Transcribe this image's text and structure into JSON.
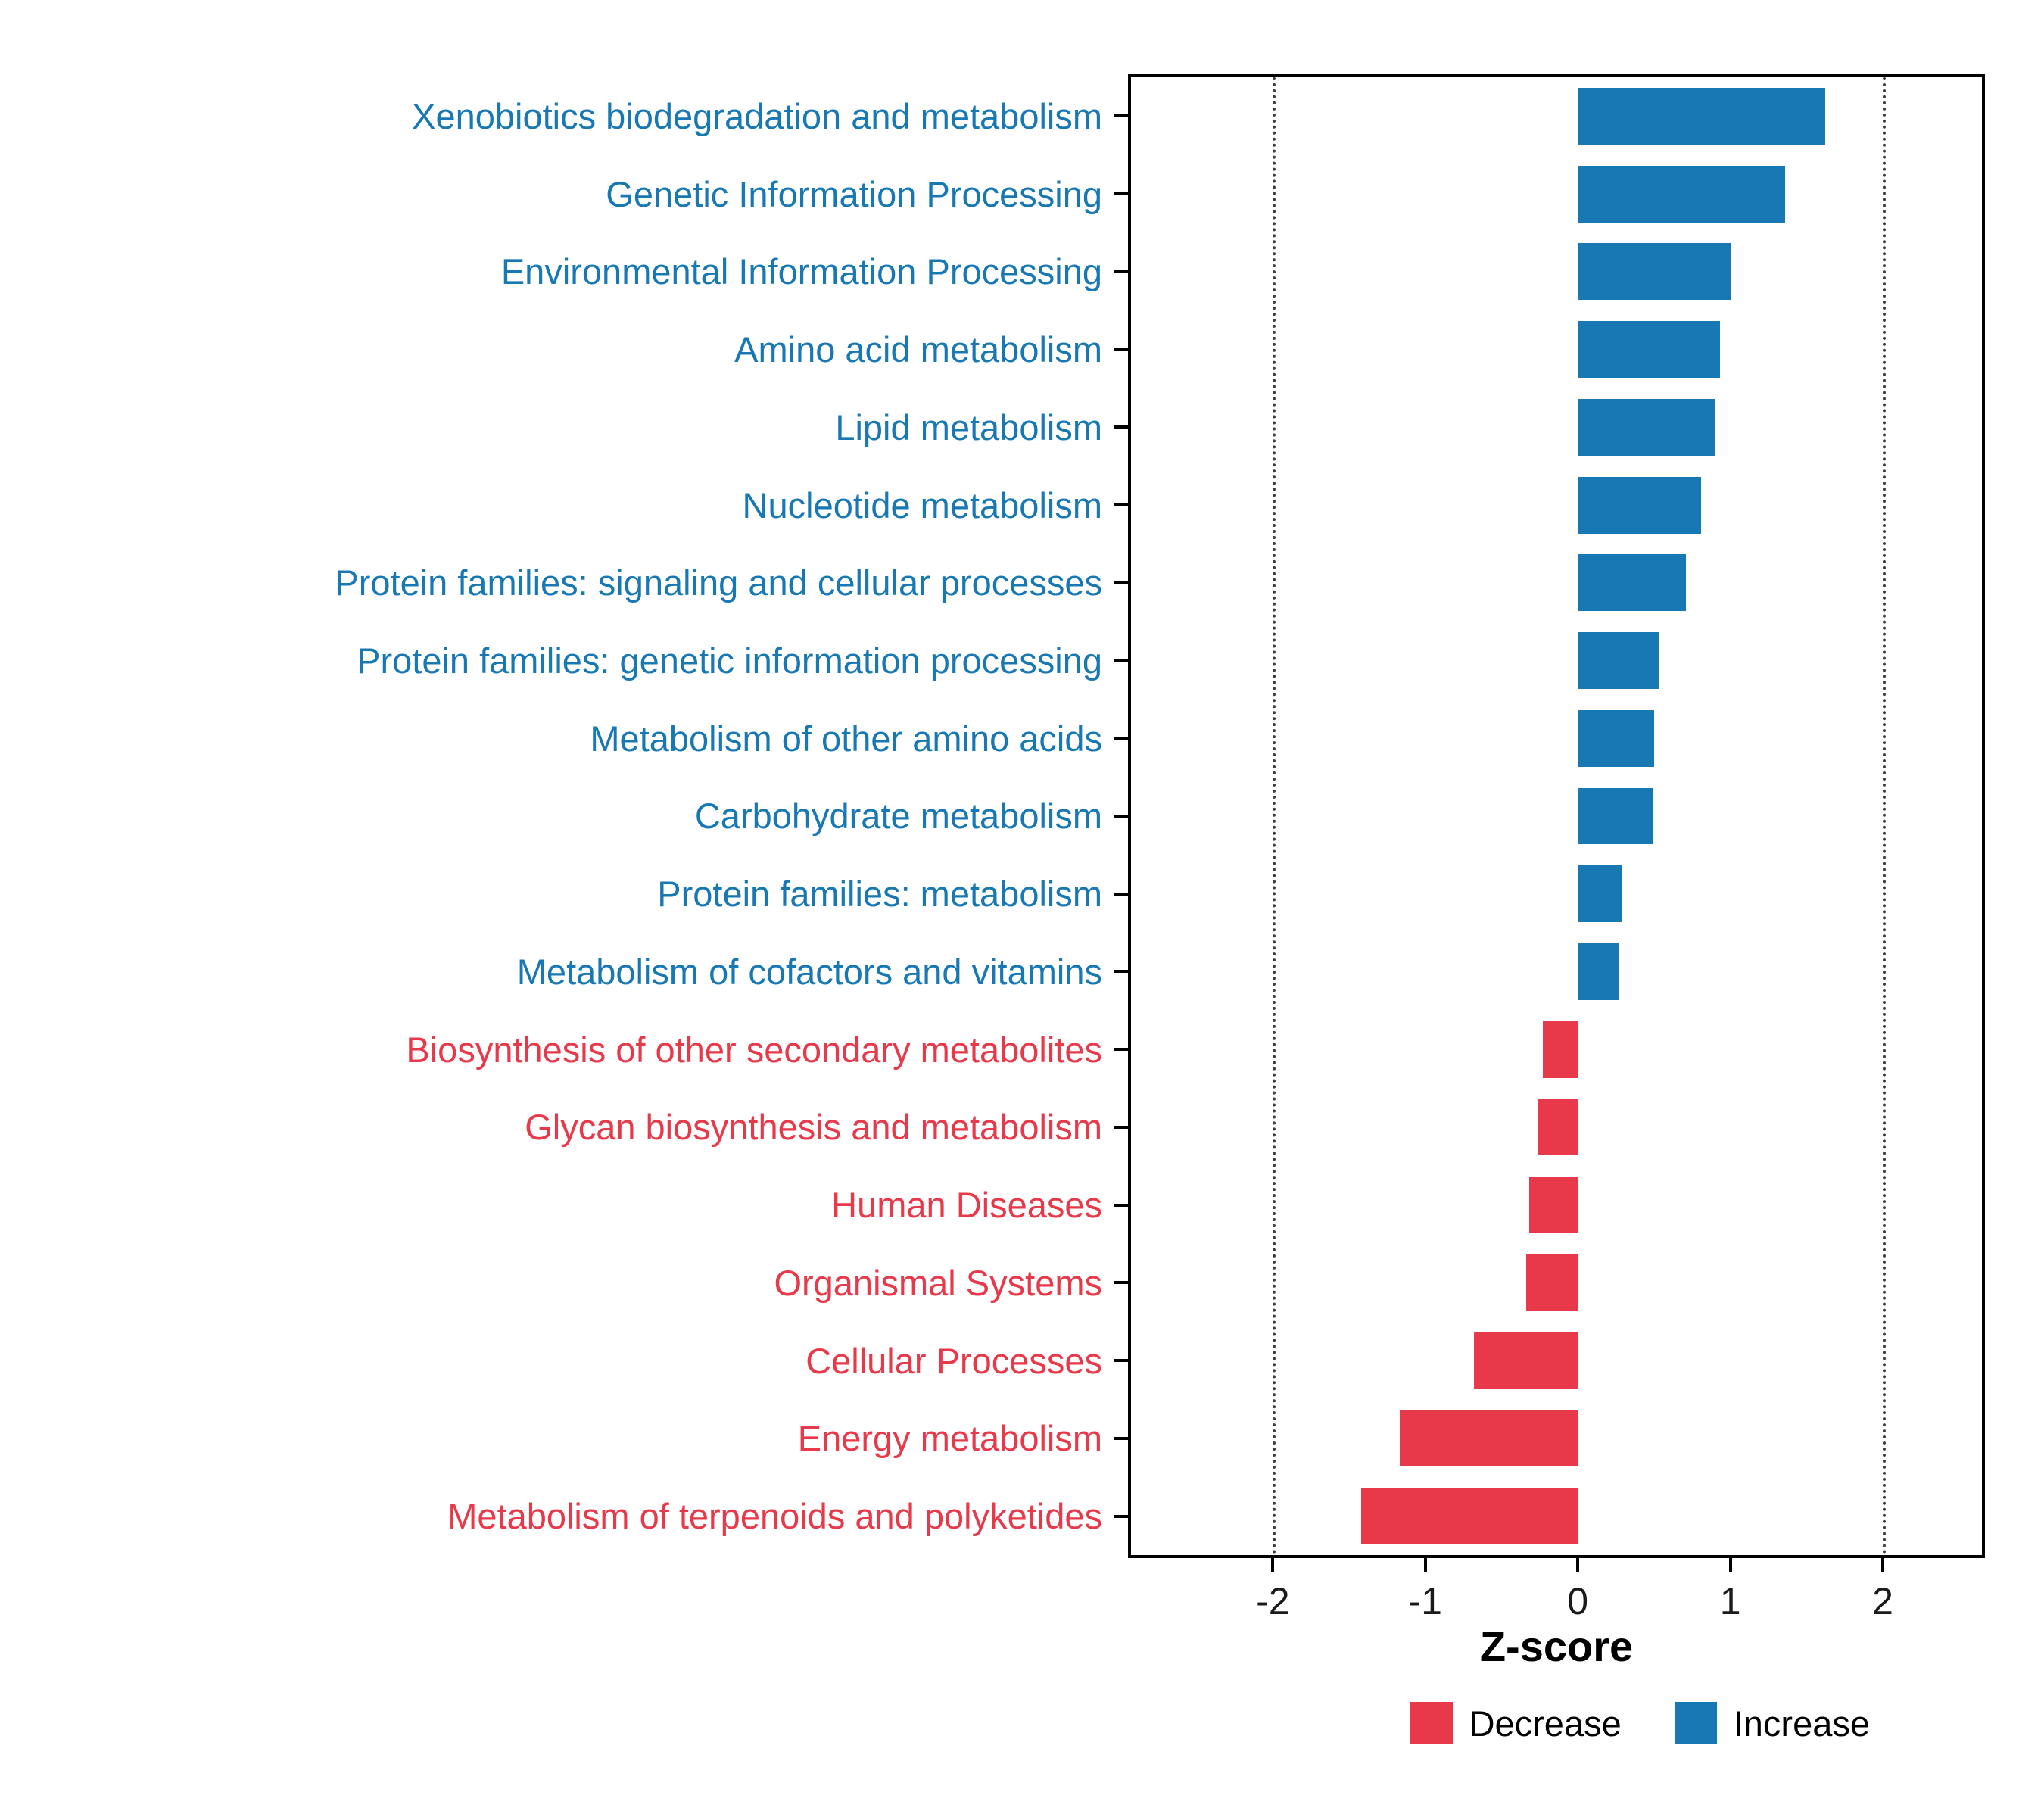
{
  "chart_data": {
    "type": "bar",
    "orientation": "horizontal",
    "title": "",
    "xlabel": "Z-score",
    "xlim": [
      -2.93,
      2.65
    ],
    "xticks": [
      -2,
      -1,
      0,
      1,
      2
    ],
    "gridlines_dotted": [
      -2,
      2
    ],
    "grid": "dotted vertical at -2 and 2 only",
    "legend_position": "bottom-right",
    "categories": [
      {
        "label": "Xenobiotics biodegradation and metabolism",
        "value": 1.62,
        "group": "increase"
      },
      {
        "label": "Genetic Information Processing",
        "value": 1.36,
        "group": "increase"
      },
      {
        "label": "Environmental Information Processing",
        "value": 1.0,
        "group": "increase"
      },
      {
        "label": "Amino acid metabolism",
        "value": 0.93,
        "group": "increase"
      },
      {
        "label": "Lipid metabolism",
        "value": 0.9,
        "group": "increase"
      },
      {
        "label": "Nucleotide metabolism",
        "value": 0.81,
        "group": "increase"
      },
      {
        "label": "Protein families: signaling and cellular processes",
        "value": 0.71,
        "group": "increase"
      },
      {
        "label": "Protein families: genetic information processing",
        "value": 0.53,
        "group": "increase"
      },
      {
        "label": "Metabolism of other amino acids",
        "value": 0.5,
        "group": "increase"
      },
      {
        "label": "Carbohydrate metabolism",
        "value": 0.49,
        "group": "increase"
      },
      {
        "label": "Protein families: metabolism",
        "value": 0.29,
        "group": "increase"
      },
      {
        "label": "Metabolism of cofactors and vitamins",
        "value": 0.27,
        "group": "increase"
      },
      {
        "label": "Biosynthesis of other secondary metabolites",
        "value": -0.23,
        "group": "decrease"
      },
      {
        "label": "Glycan biosynthesis and metabolism",
        "value": -0.26,
        "group": "decrease"
      },
      {
        "label": "Human Diseases",
        "value": -0.32,
        "group": "decrease"
      },
      {
        "label": "Organismal Systems",
        "value": -0.34,
        "group": "decrease"
      },
      {
        "label": "Cellular Processes",
        "value": -0.68,
        "group": "decrease"
      },
      {
        "label": "Energy metabolism",
        "value": -1.17,
        "group": "decrease"
      },
      {
        "label": "Metabolism of terpenoids and polyketides",
        "value": -1.42,
        "group": "decrease"
      }
    ],
    "colors": {
      "decrease": "#E8394A",
      "increase": "#1878B4",
      "panel_border": "#000000",
      "gridline": "#3d3d3d",
      "tick_text": "#1a1a1a"
    },
    "legend": [
      {
        "label": "Decrease",
        "group": "decrease"
      },
      {
        "label": "Increase",
        "group": "increase"
      }
    ]
  }
}
